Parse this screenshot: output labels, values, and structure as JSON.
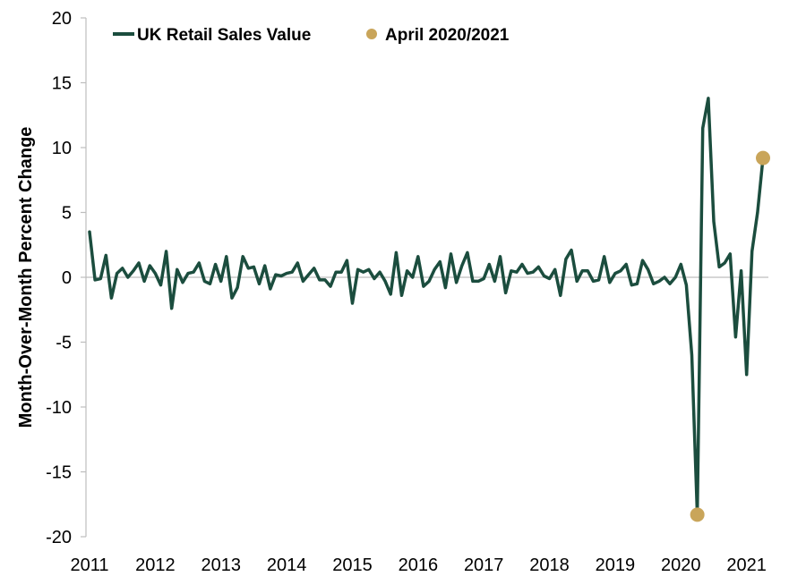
{
  "chart_data": {
    "type": "line",
    "title": "",
    "ylabel": "Month-Over-Month Percent Change",
    "xlabel": "",
    "ylim": [
      -20,
      20
    ],
    "yticks": [
      20,
      15,
      10,
      5,
      0,
      -5,
      -10,
      -15,
      -20
    ],
    "xlim": [
      2011.0,
      2021.25
    ],
    "xticks": [
      "2011",
      "2012",
      "2013",
      "2014",
      "2015",
      "2016",
      "2017",
      "2018",
      "2019",
      "2020",
      "2021"
    ],
    "grid": false,
    "legend_position": "top-left",
    "colors": {
      "line": "#1b4d3e",
      "highlight": "#c9a55a"
    },
    "series": [
      {
        "name": "UK Retail Sales Value",
        "x": [
          2011.0,
          2011.083,
          2011.167,
          2011.25,
          2011.333,
          2011.417,
          2011.5,
          2011.583,
          2011.667,
          2011.75,
          2011.833,
          2011.917,
          2012.0,
          2012.083,
          2012.167,
          2012.25,
          2012.333,
          2012.417,
          2012.5,
          2012.583,
          2012.667,
          2012.75,
          2012.833,
          2012.917,
          2013.0,
          2013.083,
          2013.167,
          2013.25,
          2013.333,
          2013.417,
          2013.5,
          2013.583,
          2013.667,
          2013.75,
          2013.833,
          2013.917,
          2014.0,
          2014.083,
          2014.167,
          2014.25,
          2014.333,
          2014.417,
          2014.5,
          2014.583,
          2014.667,
          2014.75,
          2014.833,
          2014.917,
          2015.0,
          2015.083,
          2015.167,
          2015.25,
          2015.333,
          2015.417,
          2015.5,
          2015.583,
          2015.667,
          2015.75,
          2015.833,
          2015.917,
          2016.0,
          2016.083,
          2016.167,
          2016.25,
          2016.333,
          2016.417,
          2016.5,
          2016.583,
          2016.667,
          2016.75,
          2016.833,
          2016.917,
          2017.0,
          2017.083,
          2017.167,
          2017.25,
          2017.333,
          2017.417,
          2017.5,
          2017.583,
          2017.667,
          2017.75,
          2017.833,
          2017.917,
          2018.0,
          2018.083,
          2018.167,
          2018.25,
          2018.333,
          2018.417,
          2018.5,
          2018.583,
          2018.667,
          2018.75,
          2018.833,
          2018.917,
          2019.0,
          2019.083,
          2019.167,
          2019.25,
          2019.333,
          2019.417,
          2019.5,
          2019.583,
          2019.667,
          2019.75,
          2019.833,
          2019.917,
          2020.0,
          2020.083,
          2020.167,
          2020.25,
          2020.333,
          2020.417,
          2020.5,
          2020.583,
          2020.667,
          2020.75,
          2020.833,
          2020.917,
          2021.0,
          2021.083,
          2021.167,
          2021.25
        ],
        "values": [
          3.5,
          -0.2,
          -0.1,
          1.7,
          -1.6,
          0.3,
          0.7,
          0.0,
          0.5,
          1.1,
          -0.3,
          0.9,
          0.3,
          -0.6,
          2.0,
          -2.4,
          0.6,
          -0.4,
          0.3,
          0.4,
          1.1,
          -0.3,
          -0.5,
          1.0,
          -0.3,
          1.6,
          -1.6,
          -0.8,
          1.6,
          0.7,
          0.8,
          -0.5,
          0.9,
          -0.9,
          0.2,
          0.1,
          0.3,
          0.4,
          1.1,
          -0.3,
          0.2,
          0.7,
          -0.2,
          -0.2,
          -0.7,
          0.4,
          0.4,
          1.3,
          -2.0,
          0.6,
          0.4,
          0.6,
          -0.1,
          0.4,
          -0.3,
          -1.3,
          1.9,
          -1.4,
          0.5,
          0.0,
          1.6,
          -0.7,
          -0.3,
          0.6,
          1.2,
          -0.8,
          1.8,
          -0.4,
          0.9,
          1.9,
          -0.3,
          -0.3,
          -0.1,
          1.0,
          -0.3,
          1.6,
          -1.2,
          0.5,
          0.4,
          1.0,
          0.3,
          0.4,
          0.8,
          0.1,
          -0.1,
          0.6,
          -1.4,
          1.4,
          2.1,
          -0.3,
          0.5,
          0.5,
          -0.3,
          -0.2,
          1.6,
          -0.4,
          0.3,
          0.5,
          1.0,
          -0.6,
          -0.5,
          1.3,
          0.6,
          -0.5,
          -0.3,
          0.0,
          -0.5,
          0.0,
          1.0,
          -0.6,
          -6.0,
          -18.3,
          11.5,
          13.8,
          4.3,
          0.8,
          1.1,
          1.8,
          -4.6,
          0.5,
          -7.5,
          2.0,
          5.0,
          9.2
        ]
      }
    ],
    "highlight_series": {
      "name": "April 2020/2021",
      "points": [
        {
          "x": 2020.25,
          "y": -18.3
        },
        {
          "x": 2021.25,
          "y": 9.2
        }
      ]
    }
  }
}
